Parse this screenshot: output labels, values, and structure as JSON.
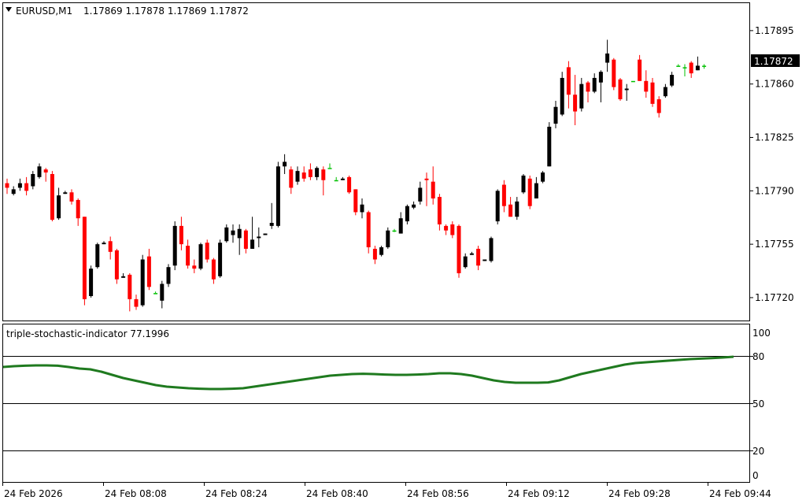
{
  "main": {
    "symbol": "EURUSD,M1",
    "ohlc": "1.17869 1.17878 1.17869 1.17872",
    "current_price": "1.17872",
    "y_ticks": [
      "1.17895",
      "1.17860",
      "1.17825",
      "1.17790",
      "1.17755",
      "1.17720"
    ]
  },
  "indicator": {
    "label": "triple-stochastic-indicator 77.1996",
    "y_ticks": [
      "100",
      "80",
      "50",
      "20",
      "0"
    ],
    "levels": [
      80,
      50,
      20
    ]
  },
  "x_ticks": [
    "24 Feb 2026",
    "24 Feb 08:08",
    "24 Feb 08:24",
    "24 Feb 08:40",
    "24 Feb 08:56",
    "24 Feb 09:12",
    "24 Feb 09:28",
    "24 Feb 09:44"
  ],
  "colors": {
    "bull": "#000000",
    "bear": "#ff0000",
    "doji": "#00c000",
    "indicator": "#1f7a1f"
  },
  "chart_data": [
    {
      "type": "candlestick",
      "title": "EURUSD,M1",
      "ylim": [
        1.17705,
        1.17913
      ],
      "candles": [
        [
          1.17795,
          1.17798,
          1.17788,
          1.17792
        ],
        [
          1.17788,
          1.17793,
          1.17787,
          1.17791
        ],
        [
          1.17792,
          1.17798,
          1.1779,
          1.17795
        ],
        [
          1.17795,
          1.17799,
          1.17787,
          1.1779
        ],
        [
          1.17793,
          1.17803,
          1.17791,
          1.17801
        ],
        [
          1.17799,
          1.17808,
          1.17798,
          1.17806
        ],
        [
          1.17804,
          1.17805,
          1.17796,
          1.17802
        ],
        [
          1.17801,
          1.17803,
          1.1777,
          1.17771
        ],
        [
          1.17772,
          1.17792,
          1.17771,
          1.17787
        ],
        [
          1.17788,
          1.1779,
          1.17788,
          1.17789
        ],
        [
          1.17789,
          1.17791,
          1.17781,
          1.17783
        ],
        [
          1.17784,
          1.17785,
          1.17767,
          1.17772
        ],
        [
          1.17773,
          1.17773,
          1.17715,
          1.17719
        ],
        [
          1.17721,
          1.17741,
          1.1772,
          1.17739
        ],
        [
          1.1774,
          1.17756,
          1.17739,
          1.17755
        ],
        [
          1.17755,
          1.17757,
          1.17755,
          1.17756
        ],
        [
          1.17757,
          1.1776,
          1.17745,
          1.1775
        ],
        [
          1.17751,
          1.17752,
          1.17729,
          1.17732
        ],
        [
          1.17733,
          1.17736,
          1.17733,
          1.17734
        ],
        [
          1.17735,
          1.17736,
          1.17711,
          1.17719
        ],
        [
          1.17719,
          1.17722,
          1.17712,
          1.17714
        ],
        [
          1.17715,
          1.17748,
          1.17714,
          1.17745
        ],
        [
          1.17747,
          1.17752,
          1.17725,
          1.17727
        ],
        [
          1.17723,
          1.17724,
          1.17723,
          1.17723
        ],
        [
          1.17718,
          1.17731,
          1.17713,
          1.17729
        ],
        [
          1.17729,
          1.17742,
          1.17727,
          1.1774
        ],
        [
          1.17741,
          1.1777,
          1.17738,
          1.17767
        ],
        [
          1.17767,
          1.17773,
          1.17751,
          1.17755
        ],
        [
          1.17754,
          1.17758,
          1.17739,
          1.17741
        ],
        [
          1.17741,
          1.17745,
          1.17736,
          1.17739
        ],
        [
          1.17739,
          1.17756,
          1.17738,
          1.17755
        ],
        [
          1.17756,
          1.17758,
          1.17743,
          1.17745
        ],
        [
          1.17745,
          1.17746,
          1.17729,
          1.17732
        ],
        [
          1.17734,
          1.17758,
          1.17733,
          1.17756
        ],
        [
          1.17757,
          1.17768,
          1.17756,
          1.17766
        ],
        [
          1.17761,
          1.17768,
          1.17756,
          1.17764
        ],
        [
          1.17759,
          1.17768,
          1.17748,
          1.17765
        ],
        [
          1.17764,
          1.17765,
          1.17749,
          1.17752
        ],
        [
          1.17752,
          1.17773,
          1.17752,
          1.17758
        ],
        [
          1.17759,
          1.17766,
          1.17753,
          1.1776
        ],
        [
          1.17761,
          1.17762,
          1.17761,
          1.17762
        ],
        [
          1.17767,
          1.17782,
          1.17765,
          1.17769
        ],
        [
          1.17767,
          1.17809,
          1.17766,
          1.17806
        ],
        [
          1.17806,
          1.17814,
          1.17801,
          1.17809
        ],
        [
          1.17804,
          1.17806,
          1.17788,
          1.17792
        ],
        [
          1.17796,
          1.17806,
          1.17794,
          1.17803
        ],
        [
          1.17802,
          1.17806,
          1.17796,
          1.17798
        ],
        [
          1.17804,
          1.17808,
          1.17797,
          1.17799
        ],
        [
          1.17799,
          1.17806,
          1.17797,
          1.17805
        ],
        [
          1.17804,
          1.17806,
          1.17787,
          1.17797
        ],
        [
          1.17805,
          1.17808,
          1.17805,
          1.17805
        ],
        [
          1.17797,
          1.17799,
          1.17797,
          1.17797
        ],
        [
          1.17797,
          1.17799,
          1.17797,
          1.17798
        ],
        [
          1.17799,
          1.178,
          1.17788,
          1.17789
        ],
        [
          1.17791,
          1.17791,
          1.17774,
          1.17776
        ],
        [
          1.17776,
          1.17785,
          1.17772,
          1.17781
        ],
        [
          1.17776,
          1.17777,
          1.17749,
          1.17753
        ],
        [
          1.17752,
          1.17754,
          1.17742,
          1.17745
        ],
        [
          1.17748,
          1.17754,
          1.17747,
          1.17753
        ],
        [
          1.17753,
          1.17766,
          1.17752,
          1.17764
        ],
        [
          1.17764,
          1.17765,
          1.17763,
          1.17764
        ],
        [
          1.17762,
          1.17776,
          1.17762,
          1.17772
        ],
        [
          1.1777,
          1.17781,
          1.17768,
          1.1778
        ],
        [
          1.17779,
          1.17783,
          1.17778,
          1.17781
        ],
        [
          1.17783,
          1.17796,
          1.17781,
          1.17792
        ],
        [
          1.17798,
          1.17802,
          1.1778,
          1.17797
        ],
        [
          1.17796,
          1.17806,
          1.17781,
          1.17785
        ],
        [
          1.17786,
          1.17788,
          1.17764,
          1.17768
        ],
        [
          1.17767,
          1.17768,
          1.17761,
          1.17764
        ],
        [
          1.17768,
          1.1777,
          1.17759,
          1.17761
        ],
        [
          1.17767,
          1.17768,
          1.17733,
          1.17736
        ],
        [
          1.1774,
          1.17749,
          1.17739,
          1.17747
        ],
        [
          1.17748,
          1.1775,
          1.17748,
          1.17749
        ],
        [
          1.17752,
          1.17754,
          1.17738,
          1.17741
        ],
        [
          1.17744,
          1.17745,
          1.17744,
          1.17745
        ],
        [
          1.17744,
          1.1776,
          1.17743,
          1.17759
        ],
        [
          1.1777,
          1.17791,
          1.17768,
          1.1779
        ],
        [
          1.17794,
          1.17797,
          1.17776,
          1.1778
        ],
        [
          1.17781,
          1.17786,
          1.17773,
          1.17773
        ],
        [
          1.17773,
          1.17786,
          1.17771,
          1.17783
        ],
        [
          1.17789,
          1.17801,
          1.17788,
          1.178
        ],
        [
          1.17798,
          1.178,
          1.17778,
          1.1778
        ],
        [
          1.17785,
          1.17799,
          1.17785,
          1.17795
        ],
        [
          1.17796,
          1.17803,
          1.17795,
          1.17802
        ],
        [
          1.17806,
          1.17835,
          1.17806,
          1.17832
        ],
        [
          1.17834,
          1.17849,
          1.17831,
          1.17845
        ],
        [
          1.1784,
          1.17868,
          1.17839,
          1.17864
        ],
        [
          1.17871,
          1.17875,
          1.17844,
          1.17853
        ],
        [
          1.17853,
          1.17866,
          1.17833,
          1.17842
        ],
        [
          1.17844,
          1.17864,
          1.17842,
          1.1786
        ],
        [
          1.17861,
          1.17862,
          1.17848,
          1.17855
        ],
        [
          1.17855,
          1.17867,
          1.17854,
          1.17864
        ],
        [
          1.17861,
          1.17869,
          1.17848,
          1.17868
        ],
        [
          1.17874,
          1.17889,
          1.17868,
          1.1788
        ],
        [
          1.17876,
          1.17877,
          1.17856,
          1.17858
        ],
        [
          1.17863,
          1.17864,
          1.17849,
          1.1785
        ],
        [
          1.17856,
          1.1786,
          1.17849,
          1.17857
        ],
        [
          1.17862,
          1.17862,
          1.17862,
          1.17862
        ],
        [
          1.17876,
          1.17879,
          1.17862,
          1.17862
        ],
        [
          1.17862,
          1.17869,
          1.17851,
          1.17855
        ],
        [
          1.17861,
          1.17864,
          1.17845,
          1.17847
        ],
        [
          1.1785,
          1.17852,
          1.17838,
          1.17841
        ],
        [
          1.17852,
          1.1786,
          1.17851,
          1.17858
        ],
        [
          1.17859,
          1.17868,
          1.17858,
          1.17866
        ],
        [
          1.17872,
          1.17873,
          1.17872,
          1.17872
        ],
        [
          1.17871,
          1.17873,
          1.17865,
          1.17871
        ],
        [
          1.17874,
          1.17875,
          1.17864,
          1.17867
        ],
        [
          1.17869,
          1.17878,
          1.17869,
          1.17872
        ],
        [
          1.17872,
          1.17873,
          1.1787,
          1.17872
        ]
      ]
    },
    {
      "type": "line",
      "title": "triple-stochastic-indicator 77.1996",
      "ylim": [
        0,
        100
      ],
      "series": [
        {
          "values": [
            73,
            73.5,
            73.8,
            74,
            74,
            73.8,
            73,
            72,
            71.5,
            70,
            68,
            66,
            64.5,
            63,
            61.5,
            60.5,
            60,
            59.5,
            59.2,
            59,
            59,
            59.2,
            59.5,
            60.5,
            61.5,
            62.5,
            63.5,
            64.5,
            65.5,
            66.5,
            67.5,
            68,
            68.5,
            68.7,
            68.5,
            68.2,
            68,
            68,
            68.2,
            68.5,
            69,
            69,
            68.5,
            67.5,
            66,
            64.5,
            63.5,
            63,
            63,
            63,
            63.2,
            64.5,
            66.5,
            68.5,
            70,
            71.5,
            73,
            74.5,
            75.5,
            76,
            76.5,
            77,
            77.5,
            78,
            78.3,
            78.6,
            79,
            79.5
          ]
        }
      ]
    }
  ]
}
